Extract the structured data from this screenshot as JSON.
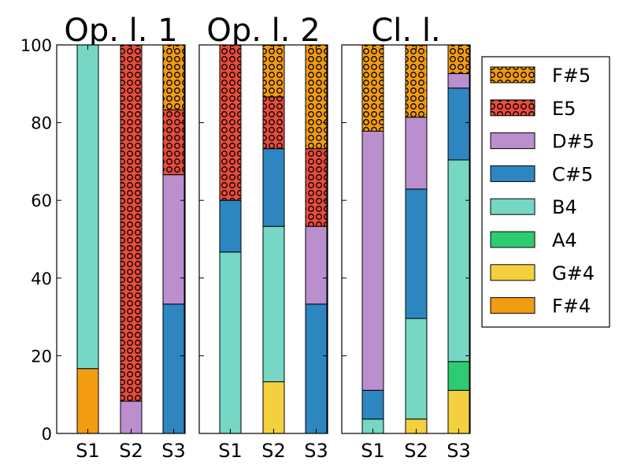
{
  "chart_data": {
    "type": "bar",
    "stacked": true,
    "y_ticks": [
      0,
      20,
      40,
      60,
      80,
      100
    ],
    "ylim": [
      0,
      100
    ],
    "categories": [
      "S1",
      "S2",
      "S3"
    ],
    "legend": {
      "placement": "right",
      "entries": [
        {
          "label": "F#5",
          "color": "#f39c12",
          "hatch": "circles"
        },
        {
          "label": "E5",
          "color": "#e74c3c",
          "hatch": "circles"
        },
        {
          "label": "D#5",
          "color": "#bb8fce",
          "hatch": "none"
        },
        {
          "label": "C#5",
          "color": "#2e86c1",
          "hatch": "none"
        },
        {
          "label": "B4",
          "color": "#76d7c4",
          "hatch": "none"
        },
        {
          "label": "A4",
          "color": "#2ecc71",
          "hatch": "none"
        },
        {
          "label": "G#4",
          "color": "#f4d03f",
          "hatch": "none"
        },
        {
          "label": "F#4",
          "color": "#f39c12",
          "hatch": "none"
        }
      ]
    },
    "stack_order": [
      "F#4",
      "G#4",
      "A4",
      "B4",
      "C#5",
      "D#5",
      "E5",
      "F#5"
    ],
    "panels": [
      {
        "title": "Op. l. 1",
        "series": [
          {
            "name": "F#4",
            "values": [
              16.7,
              0,
              0
            ]
          },
          {
            "name": "G#4",
            "values": [
              0,
              0,
              0
            ]
          },
          {
            "name": "A4",
            "values": [
              0,
              0,
              0
            ]
          },
          {
            "name": "B4",
            "values": [
              83.3,
              0,
              0
            ]
          },
          {
            "name": "C#5",
            "values": [
              0,
              0,
              33.3
            ]
          },
          {
            "name": "D#5",
            "values": [
              0,
              8.3,
              33.3
            ]
          },
          {
            "name": "E5",
            "values": [
              0,
              91.7,
              16.7
            ]
          },
          {
            "name": "F#5",
            "values": [
              0,
              0,
              16.7
            ]
          }
        ]
      },
      {
        "title": "Op. l. 2",
        "series": [
          {
            "name": "F#4",
            "values": [
              0,
              0,
              0
            ]
          },
          {
            "name": "G#4",
            "values": [
              0,
              13.3,
              0
            ]
          },
          {
            "name": "A4",
            "values": [
              0,
              0,
              0
            ]
          },
          {
            "name": "B4",
            "values": [
              46.7,
              40,
              0
            ]
          },
          {
            "name": "C#5",
            "values": [
              13.3,
              20,
              33.3
            ]
          },
          {
            "name": "D#5",
            "values": [
              0,
              0,
              20
            ]
          },
          {
            "name": "E5",
            "values": [
              40,
              13.3,
              20
            ]
          },
          {
            "name": "F#5",
            "values": [
              0,
              13.3,
              26.7
            ]
          }
        ]
      },
      {
        "title": "Cl. l.",
        "series": [
          {
            "name": "F#4",
            "values": [
              0,
              0,
              0
            ]
          },
          {
            "name": "G#4",
            "values": [
              0,
              3.7,
              11.1
            ]
          },
          {
            "name": "A4",
            "values": [
              0,
              0,
              7.4
            ]
          },
          {
            "name": "B4",
            "values": [
              3.7,
              25.9,
              51.9
            ]
          },
          {
            "name": "C#5",
            "values": [
              7.4,
              33.3,
              18.5
            ]
          },
          {
            "name": "D#5",
            "values": [
              66.7,
              18.5,
              3.7
            ]
          },
          {
            "name": "E5",
            "values": [
              0,
              0,
              0
            ]
          },
          {
            "name": "F#5",
            "values": [
              22.2,
              18.5,
              7.4
            ]
          }
        ]
      }
    ]
  }
}
